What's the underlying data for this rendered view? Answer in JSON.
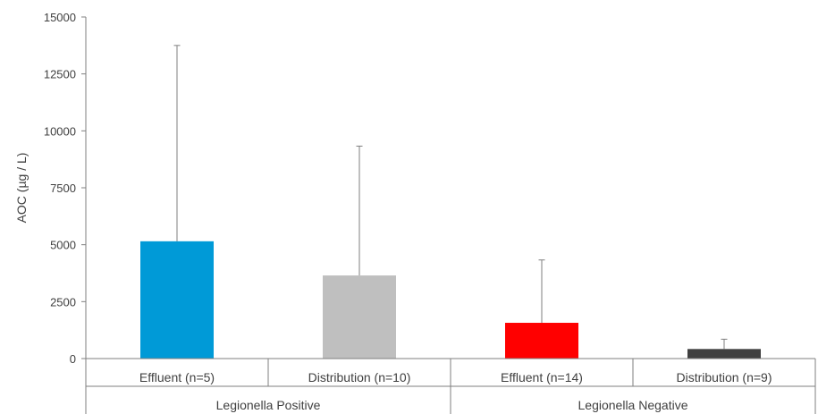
{
  "chart_data": {
    "type": "bar",
    "title": "",
    "xlabel": "",
    "ylabel": "AOC  (µg / L)",
    "ylim": [
      0,
      15000
    ],
    "yticks": [
      0,
      2500,
      5000,
      7500,
      10000,
      12500,
      15000
    ],
    "grid": false,
    "categories": [
      "Effluent (n=5)",
      "Distribution (n=10)",
      "Effluent (n=14)",
      "Distribution (n=9)"
    ],
    "groups": [
      {
        "label": "Legionella Positive",
        "categories": [
          0,
          1
        ]
      },
      {
        "label": "Legionella Negative",
        "categories": [
          2,
          3
        ]
      }
    ],
    "values": [
      5150,
      3650,
      1570,
      420
    ],
    "error_upper": [
      13750,
      9330,
      4330,
      850
    ],
    "colors": [
      "#009AD7",
      "#BFBFBF",
      "#FF0000",
      "#404040"
    ]
  }
}
